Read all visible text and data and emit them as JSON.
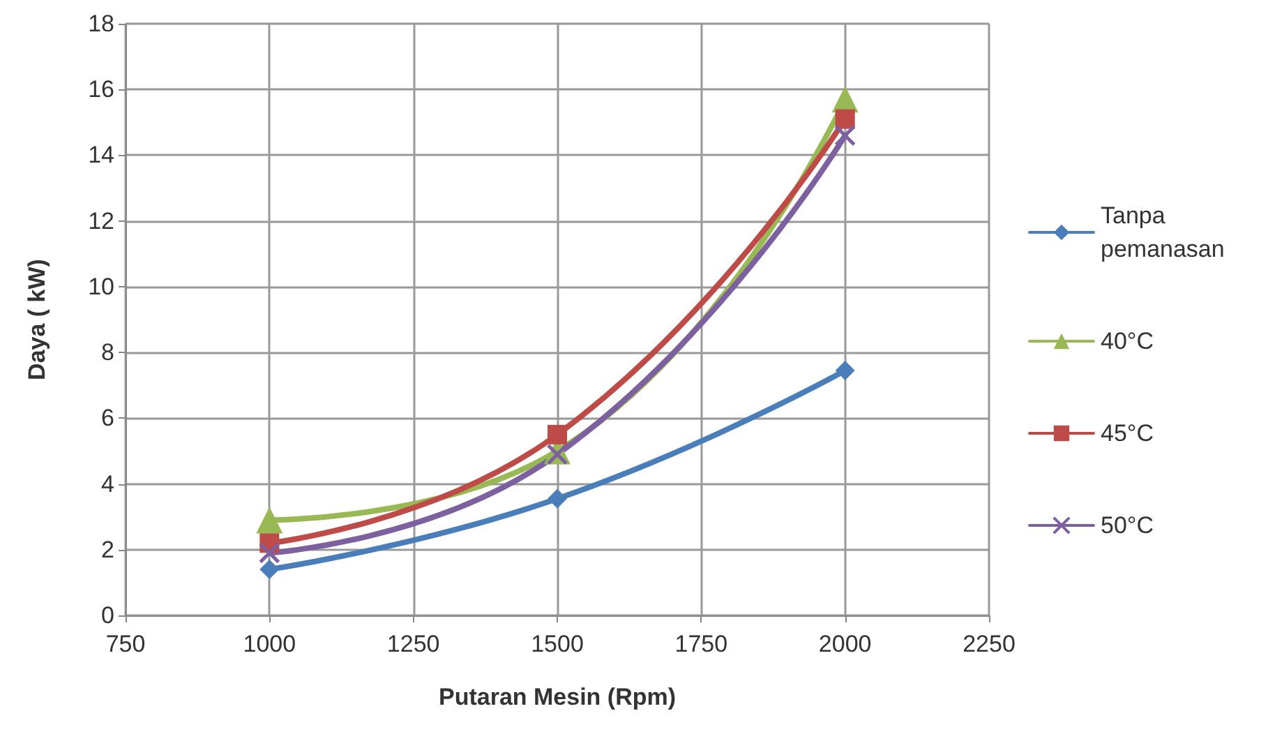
{
  "chart_data": {
    "type": "line",
    "xlabel": "Putaran Mesin (Rpm)",
    "ylabel": "Daya ( kW)",
    "x": [
      1000,
      1500,
      2000
    ],
    "xlim": [
      750,
      2250
    ],
    "xticks": [
      750,
      1000,
      1250,
      1500,
      1750,
      2000,
      2250
    ],
    "ylim": [
      0,
      18
    ],
    "yticks": [
      0,
      2,
      4,
      6,
      8,
      10,
      12,
      14,
      16,
      18
    ],
    "grid": true,
    "legend": "right",
    "series": [
      {
        "name": "Tanpa pemanasan",
        "color": "#4a7ebb",
        "marker": "diamond",
        "values": [
          1.4,
          3.55,
          7.45
        ]
      },
      {
        "name": "40°C",
        "color": "#98b954",
        "marker": "triangle",
        "values": [
          2.9,
          5.0,
          15.7
        ]
      },
      {
        "name": "45°C",
        "color": "#be4b48",
        "marker": "square",
        "values": [
          2.2,
          5.5,
          15.1
        ]
      },
      {
        "name": "50°C",
        "color": "#7d60a0",
        "marker": "cross",
        "values": [
          1.9,
          4.9,
          14.6
        ]
      }
    ]
  }
}
